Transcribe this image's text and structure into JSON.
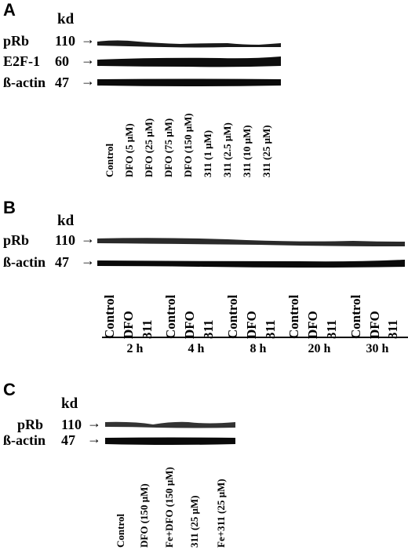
{
  "panel_a": {
    "letter": "A",
    "unit": "kd",
    "rows": [
      {
        "name": "pRb",
        "kd": "110"
      },
      {
        "name": "E2F-1",
        "kd": "60"
      },
      {
        "name": "ß-actin",
        "kd": "47"
      }
    ],
    "lanes": [
      "Control",
      "DFO (5 μM)",
      "DFO (25 μM)",
      "DFO (75 μM)",
      "DFO (150 μM)",
      "311 (1 μM)",
      "311 (2.5 μM)",
      "311 (10 μM)",
      "311 (25 μM)"
    ]
  },
  "panel_b": {
    "letter": "B",
    "unit": "kd",
    "rows": [
      {
        "name": "pRb",
        "kd": "110"
      },
      {
        "name": "ß-actin",
        "kd": "47"
      }
    ],
    "lanes": [
      "Control",
      "DFO",
      "311"
    ],
    "timepoints": [
      "2 h",
      "4 h",
      "8 h",
      "20 h",
      "30 h"
    ]
  },
  "panel_c": {
    "letter": "C",
    "unit": "kd",
    "rows": [
      {
        "name": "pRb",
        "kd": "110"
      },
      {
        "name": "ß-actin",
        "kd": "47"
      }
    ],
    "lanes": [
      "Control",
      "DFO (150 μM)",
      "Fe+DFO (150 μM)",
      "311 (25 μM)",
      "Fe+311 (25 μM)"
    ]
  },
  "arrow_glyph": "→"
}
